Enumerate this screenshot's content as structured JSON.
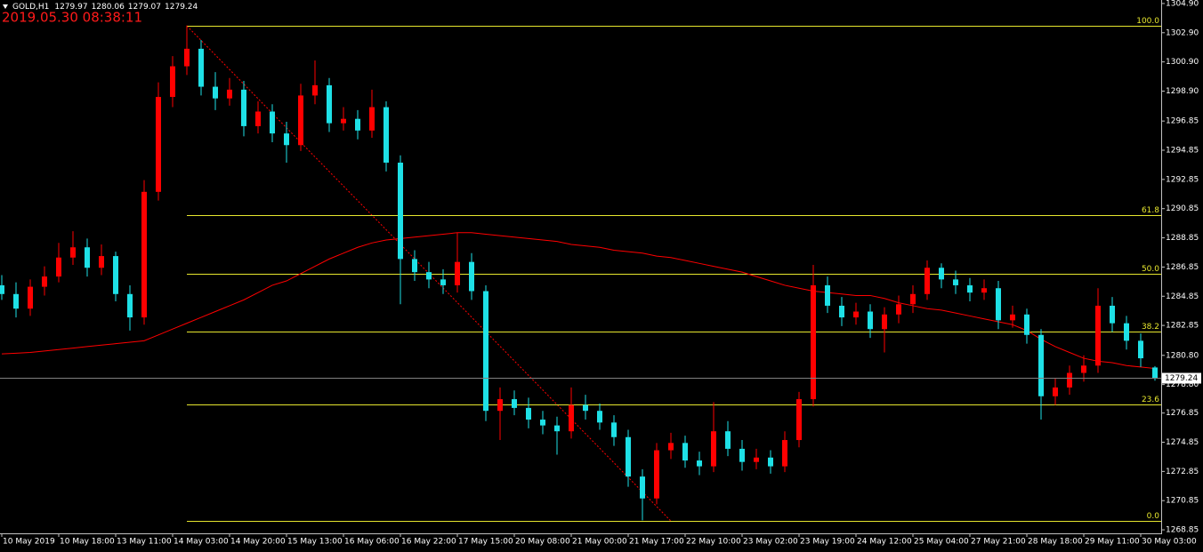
{
  "chart_data": {
    "type": "candlestick",
    "symbol": "GOLD,H1",
    "timestamp": "2019.05.30 08:38:11",
    "up_color": "#ff0000",
    "down_color": "#1ee0e6",
    "categories": [
      "10 May 2019",
      null,
      null,
      null,
      "10 May 18:00",
      null,
      null,
      null,
      "13 May 11:00",
      null,
      null,
      null,
      "14 May 03:00",
      null,
      null,
      null,
      "14 May 20:00",
      null,
      null,
      null,
      "15 May 13:00",
      null,
      null,
      null,
      "16 May 06:00",
      null,
      null,
      null,
      "16 May 22:00",
      null,
      null,
      null,
      "17 May 15:00",
      null,
      null,
      null,
      "20 May 08:00",
      null,
      null,
      null,
      "21 May 00:00",
      null,
      null,
      null,
      "21 May 17:00",
      null,
      null,
      null,
      "22 May 10:00",
      null,
      null,
      null,
      "23 May 02:00",
      null,
      null,
      null,
      "23 May 19:00",
      null,
      null,
      null,
      "24 May 12:00",
      null,
      null,
      null,
      "25 May 04:00",
      null,
      null,
      null,
      "27 May 21:00",
      null,
      null,
      null,
      "28 May 18:00",
      null,
      null,
      null,
      "29 May 11:00",
      null,
      null,
      null,
      "30 May 03:00",
      null
    ],
    "open": [
      1285.6,
      1285.0,
      1284.0,
      1285.5,
      1286.2,
      1287.5,
      1288.2,
      1286.8,
      1287.6,
      1285.0,
      1283.4,
      1292.0,
      1298.5,
      1300.6,
      1301.8,
      1299.2,
      1298.4,
      1299.0,
      1296.5,
      1297.5,
      1296.0,
      1295.2,
      1298.6,
      1299.3,
      1296.7,
      1297.0,
      1296.2,
      1297.8,
      1294.0,
      1287.4,
      1286.5,
      1286.0,
      1285.6,
      1287.2,
      1285.2,
      1277.0,
      1277.8,
      1277.2,
      1276.4,
      1276.0,
      1275.6,
      1277.4,
      1277.0,
      1276.2,
      1275.2,
      1272.5,
      1271.0,
      1274.3,
      1274.8,
      1273.6,
      1273.2,
      1275.6,
      1274.4,
      1273.5,
      1273.8,
      1273.2,
      1275.0,
      1277.8,
      1285.6,
      1284.2,
      1283.4,
      1283.8,
      1282.6,
      1283.6,
      1284.3,
      1285.0,
      1286.8,
      1286.0,
      1285.6,
      1285.1,
      1285.4,
      1283.2,
      1283.6,
      1282.2,
      1278.0,
      1278.6,
      1279.6,
      1280.1,
      1284.2,
      1283.0,
      1281.8,
      1279.97
    ],
    "high": [
      1286.3,
      1285.8,
      1286.0,
      1286.9,
      1288.5,
      1289.3,
      1288.8,
      1288.4,
      1287.9,
      1285.6,
      1292.8,
      1299.5,
      1301.3,
      1303.4,
      1302.4,
      1300.2,
      1299.8,
      1299.6,
      1298.2,
      1298.0,
      1296.8,
      1299.4,
      1301.0,
      1299.8,
      1297.8,
      1297.6,
      1299.0,
      1298.2,
      1294.5,
      1288.0,
      1287.2,
      1286.7,
      1289.2,
      1287.8,
      1285.6,
      1278.6,
      1278.4,
      1277.9,
      1277.0,
      1276.6,
      1278.6,
      1278.1,
      1277.5,
      1276.7,
      1275.7,
      1273.0,
      1274.8,
      1275.5,
      1275.3,
      1274.2,
      1277.6,
      1276.3,
      1275.0,
      1274.4,
      1274.3,
      1275.6,
      1278.3,
      1287.0,
      1286.2,
      1284.8,
      1284.4,
      1284.3,
      1284.1,
      1284.9,
      1285.6,
      1287.3,
      1287.1,
      1286.6,
      1286.1,
      1286.0,
      1285.9,
      1284.2,
      1284.0,
      1282.6,
      1279.2,
      1280.1,
      1280.8,
      1285.4,
      1284.8,
      1283.5,
      1282.3,
      1280.06
    ],
    "low": [
      1284.6,
      1283.4,
      1283.5,
      1284.9,
      1285.8,
      1287.0,
      1286.2,
      1286.3,
      1284.5,
      1282.5,
      1282.9,
      1291.4,
      1297.8,
      1300.0,
      1298.6,
      1297.6,
      1297.9,
      1295.8,
      1296.0,
      1295.4,
      1294.0,
      1294.8,
      1298.0,
      1296.1,
      1296.2,
      1295.6,
      1295.7,
      1293.4,
      1284.3,
      1285.9,
      1285.4,
      1285.0,
      1285.1,
      1284.6,
      1276.3,
      1275.0,
      1276.7,
      1275.8,
      1275.4,
      1274.0,
      1275.1,
      1276.4,
      1275.7,
      1274.6,
      1271.8,
      1269.5,
      1270.6,
      1273.7,
      1273.1,
      1272.6,
      1272.8,
      1273.9,
      1272.9,
      1273.0,
      1272.7,
      1272.8,
      1274.5,
      1277.3,
      1283.7,
      1282.8,
      1282.9,
      1282.0,
      1281.0,
      1283.0,
      1283.7,
      1284.6,
      1285.4,
      1285.0,
      1284.5,
      1284.6,
      1282.6,
      1282.7,
      1281.6,
      1276.4,
      1277.4,
      1278.1,
      1279.0,
      1279.6,
      1282.4,
      1281.2,
      1280.0,
      1279.07
    ],
    "close": [
      1285.0,
      1284.0,
      1285.5,
      1286.2,
      1287.5,
      1288.2,
      1286.8,
      1287.6,
      1285.0,
      1283.4,
      1292.0,
      1298.5,
      1300.6,
      1301.8,
      1299.2,
      1298.4,
      1299.0,
      1296.5,
      1297.5,
      1296.0,
      1295.2,
      1298.6,
      1299.3,
      1296.7,
      1297.0,
      1296.2,
      1297.8,
      1294.0,
      1287.4,
      1286.5,
      1286.0,
      1285.6,
      1287.2,
      1285.2,
      1277.0,
      1277.8,
      1277.2,
      1276.4,
      1276.0,
      1275.6,
      1277.4,
      1277.0,
      1276.2,
      1275.2,
      1272.5,
      1271.0,
      1274.3,
      1274.8,
      1273.6,
      1273.2,
      1275.6,
      1274.4,
      1273.5,
      1273.8,
      1273.2,
      1275.0,
      1277.8,
      1285.6,
      1284.2,
      1283.4,
      1283.8,
      1282.6,
      1283.6,
      1284.3,
      1285.0,
      1286.8,
      1286.0,
      1285.6,
      1285.1,
      1285.4,
      1283.2,
      1283.6,
      1282.2,
      1278.0,
      1278.6,
      1279.6,
      1280.1,
      1284.2,
      1283.0,
      1281.8,
      1280.6,
      1279.24
    ],
    "moving_average": {
      "color": "#ff0000",
      "values": [
        1280.9,
        1280.95,
        1281.0,
        1281.1,
        1281.2,
        1281.3,
        1281.4,
        1281.5,
        1281.6,
        1281.7,
        1281.8,
        1282.2,
        1282.6,
        1283.0,
        1283.4,
        1283.8,
        1284.2,
        1284.6,
        1285.1,
        1285.6,
        1285.9,
        1286.4,
        1286.9,
        1287.4,
        1287.8,
        1288.2,
        1288.5,
        1288.7,
        1288.8,
        1288.9,
        1289.0,
        1289.1,
        1289.2,
        1289.2,
        1289.1,
        1289.0,
        1288.9,
        1288.8,
        1288.7,
        1288.6,
        1288.4,
        1288.3,
        1288.2,
        1288.0,
        1287.9,
        1287.8,
        1287.6,
        1287.5,
        1287.3,
        1287.1,
        1286.9,
        1286.7,
        1286.5,
        1286.2,
        1285.9,
        1285.6,
        1285.4,
        1285.2,
        1285.1,
        1285.0,
        1284.9,
        1284.9,
        1284.7,
        1284.4,
        1284.2,
        1284.0,
        1283.9,
        1283.7,
        1283.5,
        1283.3,
        1283.1,
        1282.9,
        1282.5,
        1281.9,
        1281.4,
        1281.0,
        1280.6,
        1280.4,
        1280.3,
        1280.1,
        1280.0,
        1279.9
      ]
    },
    "fibonacci": {
      "color": "#e6e62e",
      "trend_color": "#ff0000",
      "start": 13,
      "end": 47,
      "levels": [
        {
          "value": 1303.37,
          "label": "100.0"
        },
        {
          "value": 1290.41,
          "label": "61.8"
        },
        {
          "value": 1286.41,
          "label": "50.0"
        },
        {
          "value": 1282.41,
          "label": "38.2"
        },
        {
          "value": 1277.46,
          "label": "23.6"
        },
        {
          "value": 1269.45,
          "label": "0.0"
        }
      ]
    },
    "ylim": [
      1268.61,
      1305.14
    ],
    "yticks": [
      {
        "value": 1304.9,
        "label": "1304.90"
      },
      {
        "value": 1302.9,
        "label": "1302.90"
      },
      {
        "value": 1300.9,
        "label": "1300.90"
      },
      {
        "value": 1298.9,
        "label": "1298.90"
      },
      {
        "value": 1296.85,
        "label": "1296.85"
      },
      {
        "value": 1294.85,
        "label": "1294.85"
      },
      {
        "value": 1292.85,
        "label": "1292.85"
      },
      {
        "value": 1290.85,
        "label": "1290.85"
      },
      {
        "value": 1288.85,
        "label": "1288.85"
      },
      {
        "value": 1286.85,
        "label": "1286.85"
      },
      {
        "value": 1284.85,
        "label": "1284.85"
      },
      {
        "value": 1282.85,
        "label": "1282.85"
      },
      {
        "value": 1280.8,
        "label": "1280.80"
      },
      {
        "value": 1278.8,
        "label": "1278.80"
      },
      {
        "value": 1276.85,
        "label": "1276.85"
      },
      {
        "value": 1274.85,
        "label": "1274.85"
      },
      {
        "value": 1272.85,
        "label": "1272.85"
      },
      {
        "value": 1270.85,
        "label": "1270.85"
      },
      {
        "value": 1268.85,
        "label": "1268.85"
      }
    ]
  }
}
